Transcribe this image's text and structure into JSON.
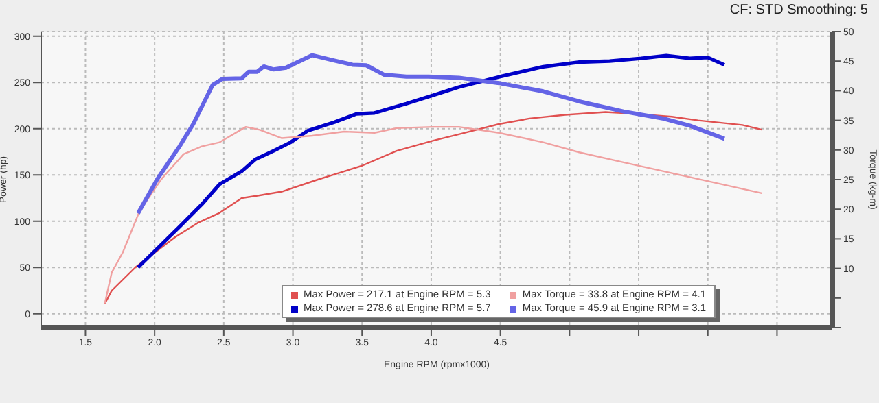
{
  "chart_data": {
    "type": "line",
    "xlabel": "Engine RPM (rpmx1000)",
    "ylabel": "Power (hp)",
    "y2label": "Torque (kg-m)",
    "annotations": [
      "CF: STD Smoothing: 5"
    ],
    "xlim": [
      1.18,
      6.9
    ],
    "xticks": [
      1.5,
      {
        "value": 2,
        "label": "2.0"
      },
      2.5,
      {
        "value": 3,
        "label": "3.0"
      },
      3.5,
      {
        "value": 4,
        "label": "4.0"
      },
      4.5,
      {
        "value": 5.0,
        "label": null
      },
      {
        "value": 5.5,
        "label": null
      },
      {
        "value": 6.0,
        "label": null
      },
      {
        "value": 6.5,
        "label": null
      }
    ],
    "ylim": [
      -15,
      305
    ],
    "yticks": [
      0,
      50,
      100,
      150,
      200,
      250,
      300
    ],
    "y2lim": [
      0,
      50
    ],
    "y2ticks": [
      {
        "value": 0,
        "label": null
      },
      {
        "value": 5,
        "label": null
      },
      10,
      15,
      20,
      25,
      30,
      35,
      40,
      45,
      50
    ],
    "grid": true,
    "legend": "bottom",
    "marker": "none",
    "line_style": "solid",
    "series": [
      {
        "name": "Max Power = 217.1 at Engine RPM = 5.3",
        "color": "#e05050",
        "x": [
          1.64,
          1.69,
          1.86,
          2.15,
          2.31,
          2.47,
          2.63,
          2.76,
          2.92,
          3.18,
          3.5,
          3.75,
          4.01,
          4.2,
          4.49,
          4.71,
          4.97,
          5.26,
          5.48,
          5.74,
          5.93,
          6.25,
          6.39
        ],
        "values": [
          11,
          25,
          50,
          83,
          98,
          109,
          125,
          128,
          132,
          145,
          160,
          176,
          187,
          194,
          205,
          211,
          215,
          218,
          216,
          213,
          209,
          204,
          199
        ]
      },
      {
        "name": "Max Power = 278.6 at Engine RPM = 5.7",
        "color": "#0000c8",
        "x": [
          1.88,
          2.18,
          2.34,
          2.47,
          2.63,
          2.73,
          2.86,
          2.98,
          3.11,
          3.3,
          3.46,
          3.59,
          3.82,
          4.01,
          4.2,
          4.49,
          4.81,
          5.07,
          5.29,
          5.52,
          5.7,
          5.87,
          6.0,
          6.12
        ],
        "values": [
          50,
          94,
          118,
          140,
          154,
          167,
          176,
          185,
          198,
          207,
          216,
          217,
          227,
          236,
          245,
          256,
          267,
          272,
          273,
          276,
          279,
          276,
          277,
          269
        ]
      },
      {
        "name": "Max Torque = 33.8 at Engine RPM = 4.1",
        "color": "#f0a0a0",
        "axis": "y2",
        "x": [
          1.64,
          1.69,
          1.77,
          1.89,
          2.05,
          2.21,
          2.34,
          2.47,
          2.66,
          2.76,
          2.92,
          3.14,
          3.37,
          3.59,
          3.75,
          4.01,
          4.2,
          4.49,
          4.81,
          5.07,
          5.39,
          5.68,
          5.93,
          6.39
        ],
        "values": [
          4.1,
          9.3,
          12.7,
          19.6,
          25.1,
          29.3,
          30.6,
          31.3,
          33.9,
          33.4,
          32.0,
          32.4,
          33.1,
          32.9,
          33.7,
          33.9,
          33.9,
          32.9,
          31.3,
          29.6,
          27.9,
          26.4,
          25.1,
          22.7
        ]
      },
      {
        "name": "Max Torque = 45.9 at Engine RPM = 3.1",
        "color": "#6464e6",
        "axis": "y2",
        "x": [
          1.88,
          2.02,
          2.18,
          2.28,
          2.42,
          2.49,
          2.63,
          2.68,
          2.74,
          2.79,
          2.86,
          2.95,
          3.14,
          3.3,
          3.43,
          3.53,
          3.66,
          3.82,
          3.98,
          4.2,
          4.49,
          4.81,
          5.07,
          5.39,
          5.68,
          5.87,
          6.12
        ],
        "values": [
          19.3,
          25.1,
          30.6,
          34.4,
          41.0,
          42.0,
          42.1,
          43.2,
          43.2,
          44.1,
          43.6,
          43.9,
          46.0,
          45.1,
          44.4,
          44.3,
          42.7,
          42.4,
          42.4,
          42.2,
          41.3,
          39.9,
          38.2,
          36.5,
          35.3,
          34.1,
          31.9
        ]
      }
    ]
  }
}
